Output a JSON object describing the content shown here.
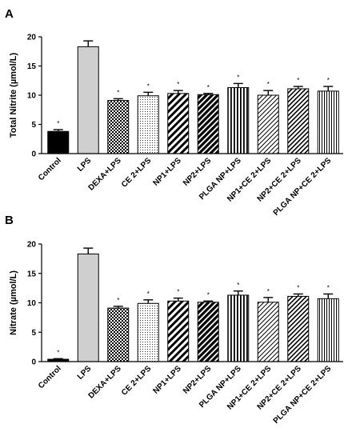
{
  "chart_data": [
    {
      "type": "bar",
      "panel_label": "A",
      "title": "",
      "xlabel": "",
      "ylabel": "Total Nitrite (µmol/L)",
      "ylim": [
        0,
        20
      ],
      "yticks": [
        "0",
        "5",
        "10",
        "15",
        "20"
      ],
      "categories": [
        "Control",
        "LPS",
        "DEXA+LPS",
        "CE 2+LPS",
        "NP1+LPS",
        "NP2+LPS",
        "PLGA NP+LPS",
        "NP1+CE 2+LPS",
        "NP2+CE 2+LPS",
        "PLGA NP+CE 2+LPS"
      ],
      "values": [
        3.8,
        18.3,
        9.1,
        9.9,
        10.3,
        10.1,
        11.3,
        10.0,
        11.1,
        10.7
      ],
      "errors": [
        0.3,
        1.0,
        0.3,
        0.6,
        0.5,
        0.2,
        0.7,
        0.8,
        0.4,
        0.8
      ],
      "significance": [
        "*",
        "",
        "*",
        "*",
        "*",
        "*",
        "*",
        "*",
        "*",
        "*"
      ],
      "grid": false,
      "legend": "none"
    },
    {
      "type": "bar",
      "panel_label": "B",
      "title": "",
      "xlabel": "",
      "ylabel": "Nitrate (µmol/L)",
      "ylim": [
        0,
        20
      ],
      "yticks": [
        "0",
        "5",
        "10",
        "15",
        "20"
      ],
      "categories": [
        "Control",
        "LPS",
        "DEXA+LPS",
        "CE 2+LPS",
        "NP1+LPS",
        "NP2+LPS",
        "PLGA NP+LPS",
        "NP1+CE 2+LPS",
        "NP2+CE 2+LPS",
        "PLGA NP+CE 2+LPS"
      ],
      "values": [
        0.4,
        18.3,
        9.1,
        9.9,
        10.3,
        10.1,
        11.3,
        10.1,
        11.1,
        10.7
      ],
      "errors": [
        0.1,
        1.0,
        0.3,
        0.6,
        0.5,
        0.2,
        0.7,
        0.8,
        0.4,
        0.8
      ],
      "significance": [
        "*",
        "",
        "*",
        "*",
        "*",
        "*",
        "*",
        "*",
        "*",
        "*"
      ],
      "grid": false,
      "legend": "none"
    }
  ],
  "bar_styles": [
    {
      "fill": "solid",
      "color": "#000000"
    },
    {
      "fill": "solid",
      "color": "#cfcfcf"
    },
    {
      "fill": "checker",
      "color": "#000000"
    },
    {
      "fill": "dots",
      "color": "#000000"
    },
    {
      "fill": "diagonal-thick",
      "color": "#000000"
    },
    {
      "fill": "diagonal-heavy",
      "color": "#000000"
    },
    {
      "fill": "vertical",
      "color": "#000000"
    },
    {
      "fill": "diagonal-fine",
      "color": "#000000"
    },
    {
      "fill": "diagonal-medium",
      "color": "#000000"
    },
    {
      "fill": "vertical-fine",
      "color": "#000000"
    }
  ]
}
